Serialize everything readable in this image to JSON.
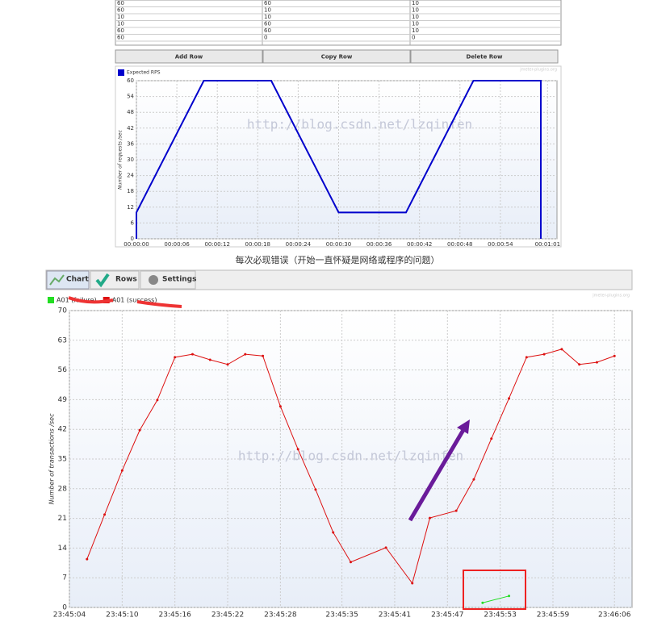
{
  "table": {
    "rows": [
      [
        "60",
        "60",
        "10"
      ],
      [
        "60",
        "10",
        "10"
      ],
      [
        "10",
        "10",
        "10"
      ],
      [
        "10",
        "60",
        "10"
      ],
      [
        "60",
        "60",
        "10"
      ],
      [
        "60",
        "0",
        "0"
      ]
    ]
  },
  "buttons": [
    "Add Row",
    "Copy Row",
    "Delete Row"
  ],
  "caption": "每次必现错误（开始一直怀疑是网络或程序的问题）",
  "tabs": [
    "Chart",
    "Rows",
    "Settings"
  ],
  "chart_data": [
    {
      "type": "line",
      "watermark": "http://blog.csdn.net/lzqinfen",
      "credit": "jmeter-plugins.org",
      "y_label": "Number of requests /sec",
      "markers": false,
      "grid": true,
      "xlim": [
        0,
        62.4
      ],
      "ylim": [
        0,
        60
      ],
      "yticks": [
        0,
        6,
        12,
        18,
        24,
        30,
        36,
        42,
        48,
        54,
        60
      ],
      "xticks": [
        {
          "value": 0,
          "label": "00:00:00"
        },
        {
          "value": 6,
          "label": "00:00:06"
        },
        {
          "value": 12,
          "label": "00:00:12"
        },
        {
          "value": 18,
          "label": "00:00:18"
        },
        {
          "value": 24,
          "label": "00:00:24"
        },
        {
          "value": 30,
          "label": "00:00:30"
        },
        {
          "value": 36,
          "label": "00:00:36"
        },
        {
          "value": 42,
          "label": "00:00:42"
        },
        {
          "value": 48,
          "label": "00:00:48"
        },
        {
          "value": 54,
          "label": "00:00:54"
        },
        {
          "value": 61,
          "label": "00:01:01"
        }
      ],
      "series": [
        {
          "name": "Expected RPS",
          "color": "#0000cc",
          "x": [
            0,
            0,
            10,
            20,
            30,
            40,
            50,
            60,
            60
          ],
          "values": [
            0,
            10,
            60,
            60,
            10,
            10,
            60,
            60,
            0
          ]
        }
      ]
    },
    {
      "type": "line",
      "watermark": "http://blog.csdn.net/lzqinfen",
      "credit": "jmeter-plugins.org",
      "y_label": "Number of transactions /sec",
      "markers": true,
      "grid": true,
      "xlim": [
        "23:45:04",
        "23:46:08"
      ],
      "ylim": [
        0,
        70
      ],
      "yticks": [
        0,
        7,
        14,
        21,
        28,
        35,
        42,
        49,
        56,
        63,
        70
      ],
      "xticks": [
        "23:45:04",
        "23:45:10",
        "23:45:16",
        "23:45:22",
        "23:45:28",
        "23:45:35",
        "23:45:41",
        "23:45:47",
        "23:45:53",
        "23:45:59",
        "23:46:06"
      ],
      "series": [
        {
          "name": "A01 (failure)",
          "color": "#22dd22",
          "x": [
            "23:45:51",
            "23:45:54"
          ],
          "values": [
            1.1,
            2.7
          ]
        },
        {
          "name": "A01 (success)",
          "color": "#dd1111",
          "x": [
            "23:45:06",
            "23:45:08",
            "23:45:10",
            "23:45:12",
            "23:45:14",
            "23:45:16",
            "23:45:18",
            "23:45:20",
            "23:45:22",
            "23:45:24",
            "23:45:26",
            "23:45:28",
            "23:45:30",
            "23:45:32",
            "23:45:34",
            "23:45:36",
            "23:45:40",
            "23:45:43",
            "23:45:45",
            "23:45:48",
            "23:45:50",
            "23:45:52",
            "23:45:54",
            "23:45:56",
            "23:45:58",
            "23:46:00",
            "23:46:02",
            "23:46:04",
            "23:46:06"
          ],
          "values": [
            11.4,
            21.9,
            32.3,
            41.8,
            48.9,
            59.0,
            59.7,
            58.4,
            57.3,
            59.7,
            59.3,
            47.4,
            37.3,
            27.8,
            17.7,
            10.7,
            14.1,
            5.7,
            21.1,
            22.8,
            30.2,
            39.8,
            49.3,
            59.0,
            59.7,
            60.9,
            57.3,
            57.8,
            59.3
          ]
        }
      ]
    }
  ]
}
